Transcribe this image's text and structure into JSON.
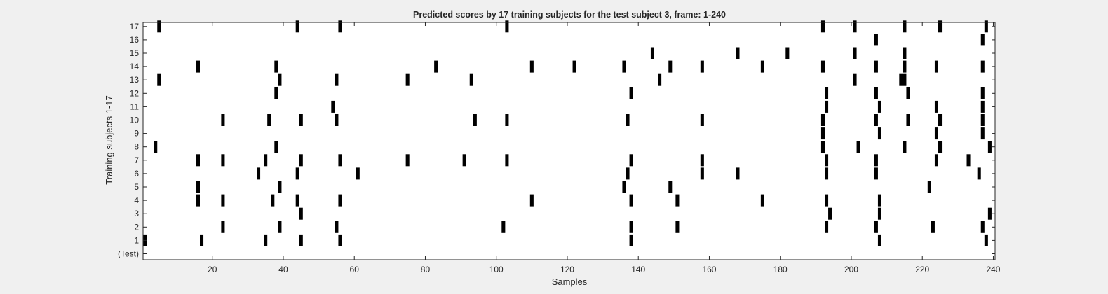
{
  "chart_data": {
    "type": "heatmap",
    "title": "Predicted scores by 17 training subjects for the test subject 3, frame: 1-240",
    "xlabel": "Samples",
    "ylabel": "Training subjects 1-17",
    "xlim": [
      0.5,
      240.5
    ],
    "x_ticks": [
      20,
      40,
      60,
      80,
      100,
      120,
      140,
      160,
      180,
      200,
      220,
      240
    ],
    "y_tick_labels": [
      "(Test)",
      "1",
      "2",
      "3",
      "4",
      "5",
      "6",
      "7",
      "8",
      "9",
      "10",
      "11",
      "12",
      "13",
      "14",
      "15",
      "16",
      "17"
    ],
    "colors": {
      "mark": "#000000",
      "background": "#ffffff"
    },
    "rows": [
      {
        "label": "(Test)",
        "x": []
      },
      {
        "label": "1",
        "x": [
          1,
          17,
          35,
          45,
          56,
          138,
          208,
          238
        ]
      },
      {
        "label": "2",
        "x": [
          23,
          39,
          55,
          102,
          138,
          151,
          193,
          207,
          223,
          237
        ]
      },
      {
        "label": "3",
        "x": [
          45,
          194,
          208,
          239
        ]
      },
      {
        "label": "4",
        "x": [
          16,
          23,
          37,
          44,
          56,
          110,
          138,
          151,
          175,
          193,
          208
        ]
      },
      {
        "label": "5",
        "x": [
          16,
          39,
          136,
          149,
          222
        ]
      },
      {
        "label": "6",
        "x": [
          33,
          44,
          61,
          137,
          158,
          168,
          193,
          207,
          236
        ]
      },
      {
        "label": "7",
        "x": [
          16,
          23,
          35,
          45,
          56,
          75,
          91,
          103,
          138,
          158,
          193,
          207,
          224,
          233
        ]
      },
      {
        "label": "8",
        "x": [
          4,
          38,
          192,
          202,
          215,
          225,
          239
        ]
      },
      {
        "label": "9",
        "x": [
          192,
          208,
          224,
          237
        ]
      },
      {
        "label": "10",
        "x": [
          23,
          36,
          45,
          55,
          94,
          103,
          137,
          158,
          192,
          207,
          216,
          225,
          237
        ]
      },
      {
        "label": "11",
        "x": [
          54,
          193,
          208,
          224,
          237
        ]
      },
      {
        "label": "12",
        "x": [
          38,
          138,
          193,
          207,
          216,
          237
        ]
      },
      {
        "label": "13",
        "x": [
          5,
          39,
          55,
          75,
          93,
          146,
          201,
          214,
          215
        ]
      },
      {
        "label": "14",
        "x": [
          16,
          38,
          83,
          110,
          122,
          136,
          149,
          158,
          175,
          192,
          207,
          215,
          224,
          237
        ]
      },
      {
        "label": "15",
        "x": [
          144,
          168,
          182,
          201,
          215
        ]
      },
      {
        "label": "16",
        "x": [
          207,
          237
        ]
      },
      {
        "label": "17",
        "x": [
          5,
          44,
          56,
          103,
          192,
          201,
          215,
          225,
          238
        ]
      }
    ],
    "grid": false,
    "legend": "none"
  }
}
